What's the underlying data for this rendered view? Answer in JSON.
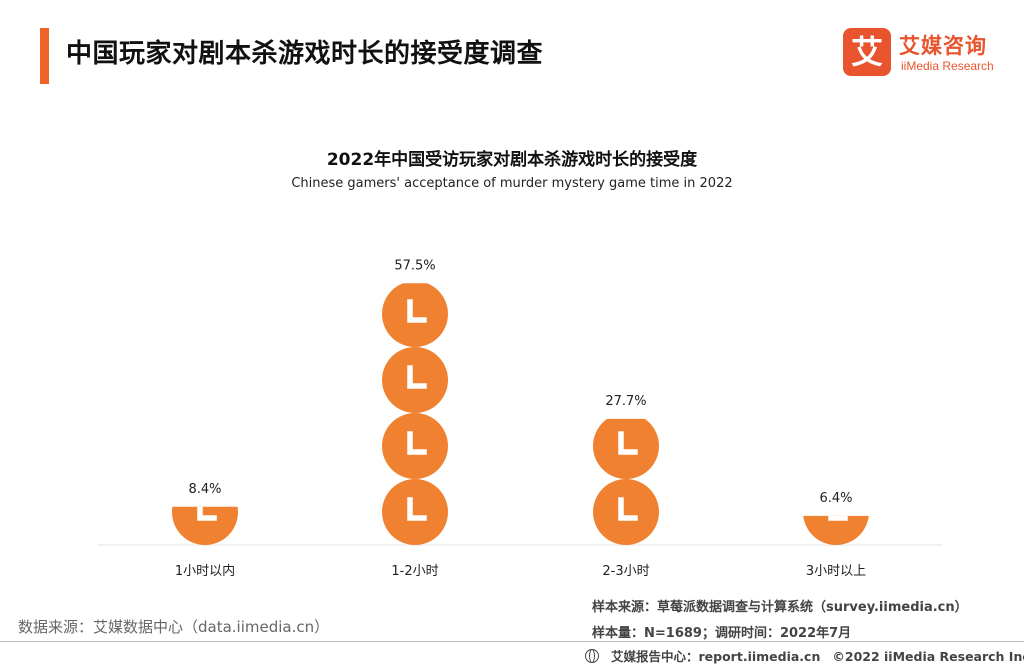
{
  "header": {
    "title": "中国玩家对剧本杀游戏时长的接受度调查"
  },
  "brand": {
    "mark": "艾",
    "name_cn": "艾媒咨询",
    "name_en": "iiMedia Research",
    "color": "#e8542d"
  },
  "chart_data": {
    "type": "bar",
    "style": "pictograph",
    "icon": "clock-icon",
    "title": "2022年中国受访玩家对剧本杀游戏时长的接受度",
    "subtitle": "Chinese gamers' acceptance of murder mystery game time in 2022",
    "categories": [
      "1小时以内",
      "1-2小时",
      "2-3小时",
      "3小时以上"
    ],
    "values": [
      8.4,
      57.5,
      27.7,
      6.4
    ],
    "value_labels": [
      "8.4%",
      "57.5%",
      "27.7%",
      "6.4%"
    ],
    "unit_value": 14.5,
    "ylim": [
      0,
      60
    ],
    "color": "#f08131"
  },
  "source": {
    "left": "数据来源：艾媒数据中心（data.iimedia.cn）"
  },
  "notes": {
    "sample_source": "样本来源：草莓派数据调查与计算系统（survey.iimedia.cn）",
    "sample_size": "样本量：N=1689；调研时间：2022年7月"
  },
  "footer": {
    "center": "艾媒报告中心：report.iimedia.cn",
    "copyright": "©2022  iiMedia Research  Inc"
  }
}
